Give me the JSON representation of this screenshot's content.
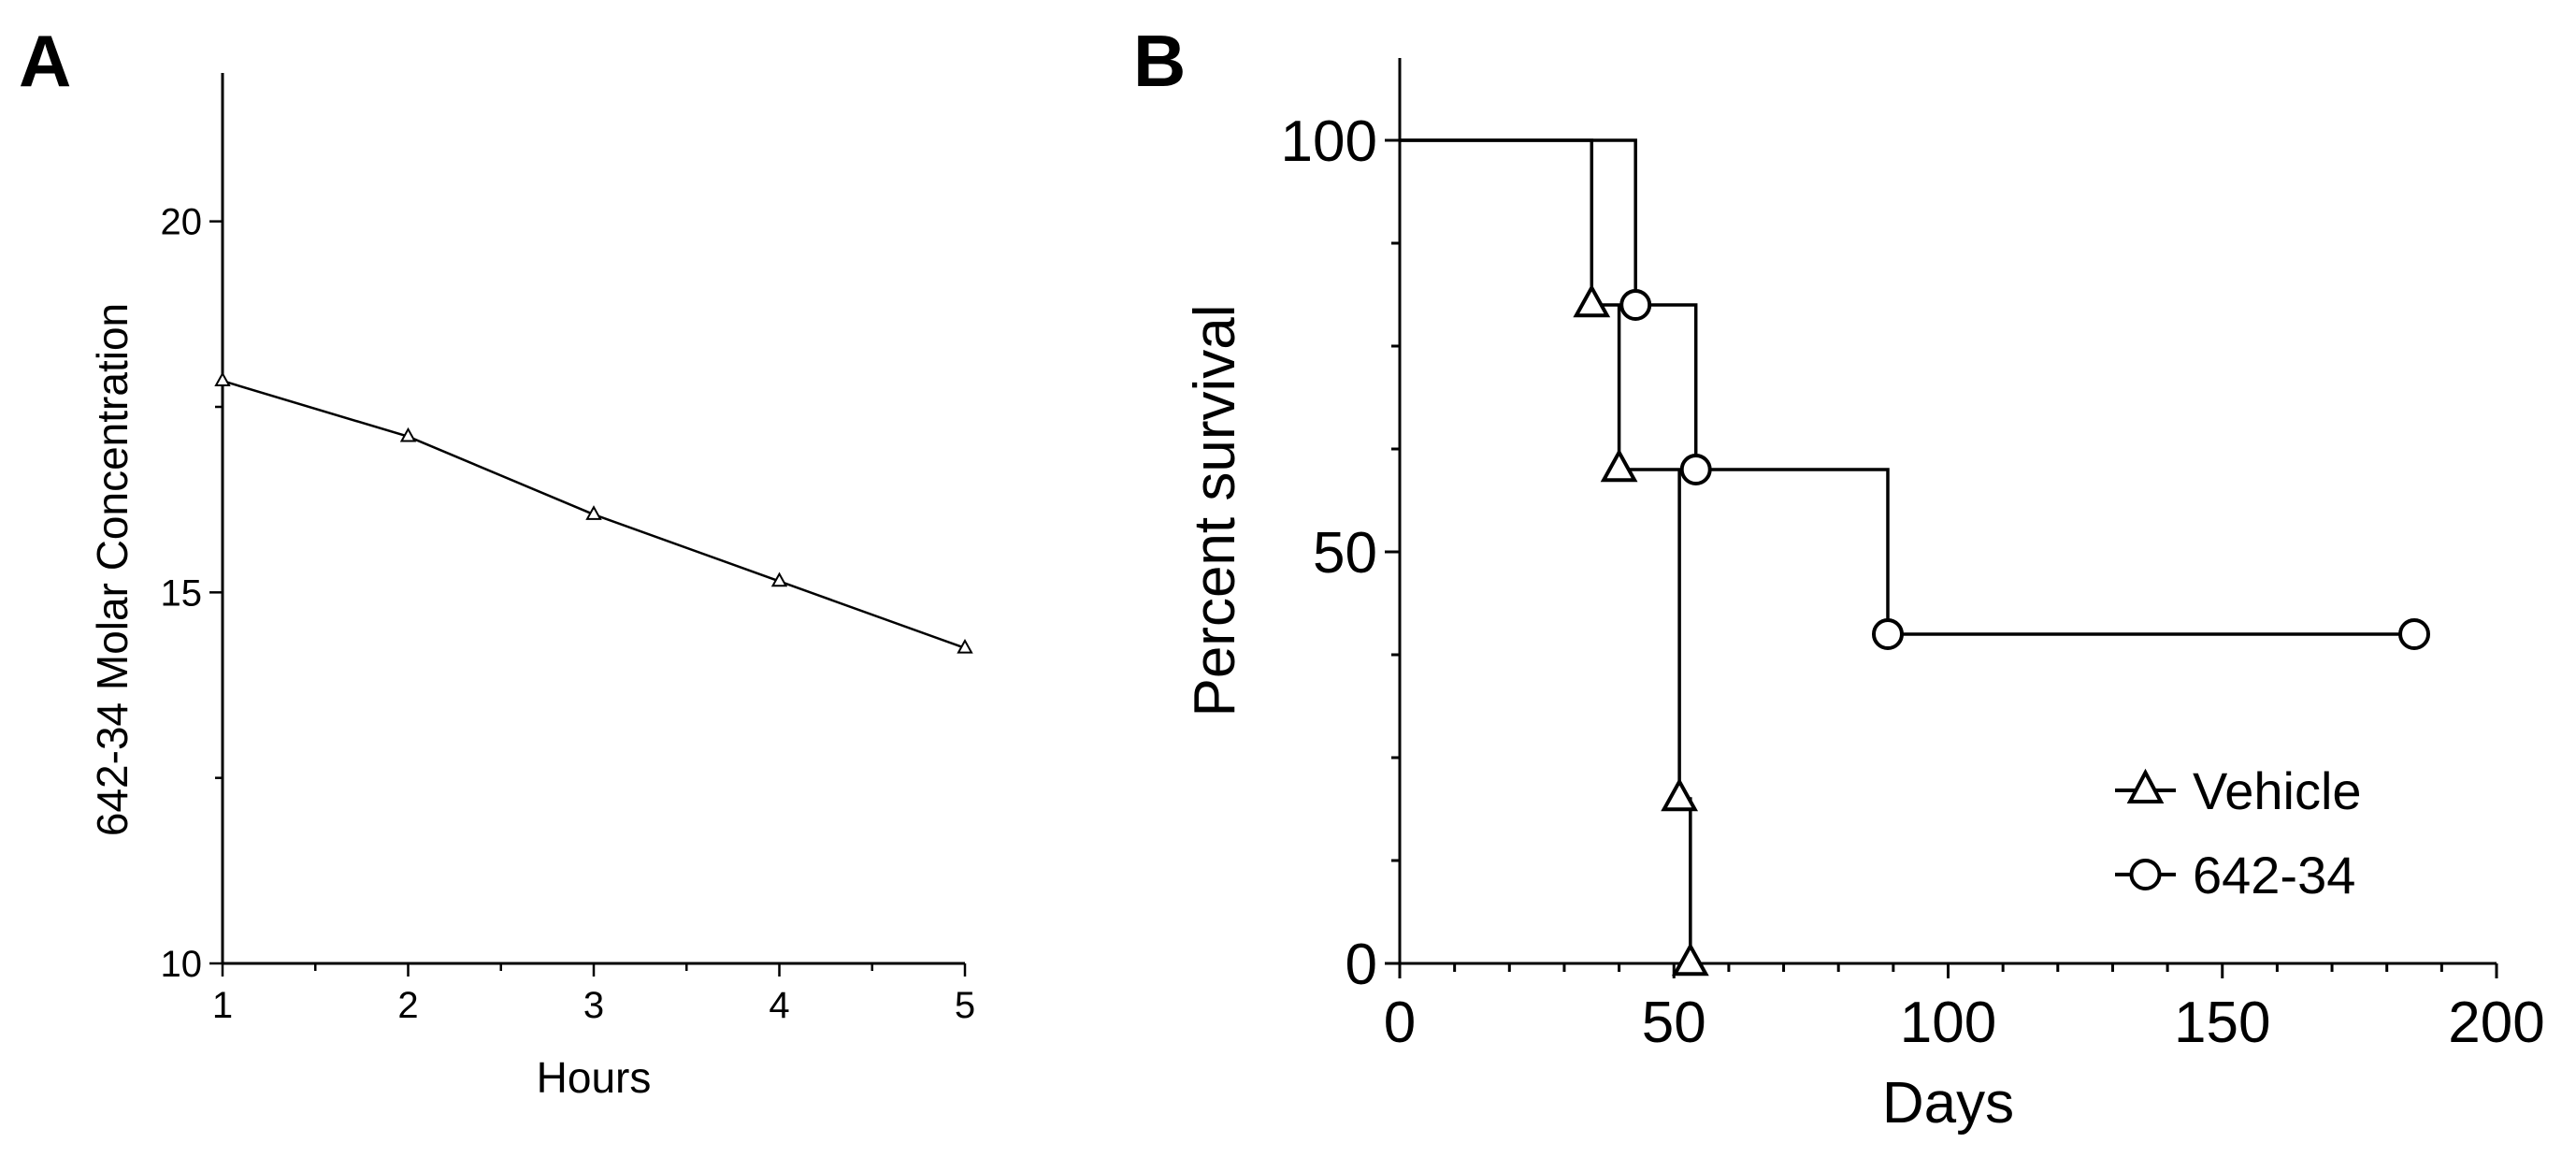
{
  "chart_data": [
    {
      "panel": "A",
      "type": "line",
      "xlabel": "Hours",
      "ylabel": "642-34 Molar Concentration",
      "xlim": [
        1,
        5
      ],
      "ylim": [
        10,
        22
      ],
      "xticks": [
        1,
        2,
        3,
        4,
        5
      ],
      "yticks": [
        10,
        15,
        20
      ],
      "marker": "triangle",
      "series": [
        {
          "x": [
            1,
            2,
            3,
            4,
            5
          ],
          "y": [
            17.85,
            17.1,
            16.05,
            15.15,
            14.25
          ]
        }
      ]
    },
    {
      "panel": "B",
      "type": "line",
      "subtype": "kaplan-meier step",
      "xlabel": "Days",
      "ylabel": "Percent survival",
      "xlim": [
        0,
        200
      ],
      "ylim": [
        0,
        110
      ],
      "xticks": [
        0,
        50,
        100,
        150,
        200
      ],
      "yticks": [
        0,
        50,
        100
      ],
      "legend_position": "bottom-right",
      "series": [
        {
          "name": "Vehicle",
          "marker": "triangle",
          "steps": [
            [
              0,
              100
            ],
            [
              35,
              80
            ],
            [
              40,
              60
            ],
            [
              51,
              20
            ],
            [
              53,
              0
            ]
          ],
          "markers": [
            [
              35,
              80
            ],
            [
              40,
              60
            ],
            [
              51,
              20
            ],
            [
              53,
              0
            ]
          ]
        },
        {
          "name": "642-34",
          "marker": "circle",
          "steps": [
            [
              0,
              100
            ],
            [
              43,
              80
            ],
            [
              54,
              60
            ],
            [
              89,
              40
            ],
            [
              185,
              40
            ]
          ],
          "markers": [
            [
              43,
              80
            ],
            [
              54,
              60
            ],
            [
              89,
              40
            ],
            [
              185,
              40
            ]
          ]
        }
      ]
    }
  ],
  "panels": {
    "a_label": "A",
    "b_label": "B"
  }
}
